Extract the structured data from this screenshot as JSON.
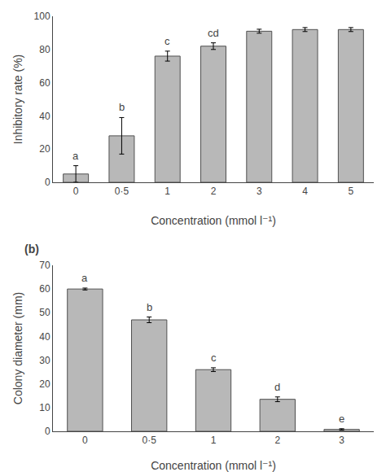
{
  "chart_data": [
    {
      "type": "bar",
      "categories": [
        "0",
        "0·5",
        "1",
        "2",
        "3",
        "4",
        "5"
      ],
      "values": [
        5,
        28,
        76,
        82,
        91,
        92,
        92
      ],
      "errors": [
        5,
        11,
        3,
        2,
        1.2,
        1.2,
        1.2
      ],
      "labels": [
        "a",
        "b",
        "c",
        "cd",
        null,
        null,
        null
      ],
      "ylabel": "Inhibitory rate (%)",
      "xlabel": "Concentration (mmol l⁻¹)",
      "ylim": [
        0,
        100
      ],
      "yticks": [
        0,
        20,
        40,
        60,
        80,
        100
      ],
      "color": "#b8b8b8",
      "grid": false
    },
    {
      "type": "bar",
      "title": "(b)",
      "categories": [
        "0",
        "0·5",
        "1",
        "2",
        "3"
      ],
      "values": [
        60,
        47,
        26,
        13.5,
        0.8
      ],
      "errors": [
        0.4,
        1.2,
        0.8,
        1.0,
        0.3
      ],
      "labels": [
        "a",
        "b",
        "c",
        "d",
        "e"
      ],
      "ylabel": "Colony diameter (mm)",
      "xlabel": "Concentration (mmol l⁻¹)",
      "ylim": [
        0,
        70
      ],
      "yticks": [
        0,
        10,
        20,
        30,
        40,
        50,
        60,
        70
      ],
      "color": "#b8b8b8",
      "grid": false
    }
  ]
}
